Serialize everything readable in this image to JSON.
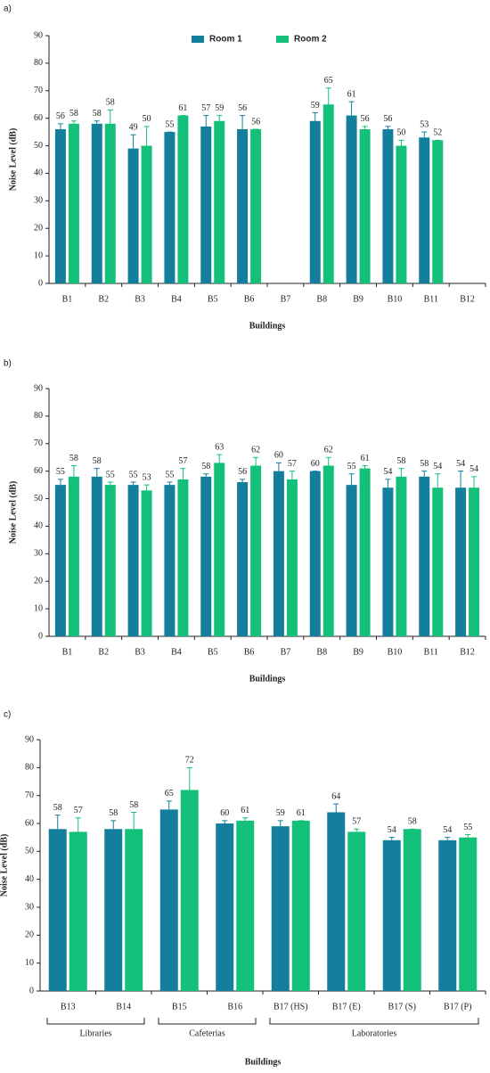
{
  "chart_data": [
    {
      "type": "bar",
      "panel_label": "a)",
      "y_label": "Noise Level (dB)",
      "x_label": "Buildings",
      "categories": [
        "B1",
        "B2",
        "B3",
        "B4",
        "B5",
        "B6",
        "B7",
        "B8",
        "B9",
        "B10",
        "B11",
        "B12"
      ],
      "series": [
        {
          "name": "Room 1",
          "color": "#137f9c",
          "values": [
            56,
            58,
            49,
            55,
            57,
            56,
            null,
            59,
            61,
            56,
            53,
            null
          ],
          "errors": [
            2,
            1,
            5,
            0,
            4,
            5,
            null,
            3,
            5,
            1,
            2,
            null
          ]
        },
        {
          "name": "Room 2",
          "color": "#12c07a",
          "values": [
            58,
            58,
            50,
            61,
            59,
            56,
            null,
            65,
            56,
            50,
            52,
            null
          ],
          "errors": [
            1,
            5,
            7,
            0,
            2,
            0,
            null,
            6,
            1,
            2,
            0,
            null
          ]
        }
      ],
      "ylim": [
        0,
        90
      ],
      "yticks": [
        0,
        10,
        20,
        30,
        40,
        50,
        60,
        70,
        80,
        90
      ],
      "legend": "top"
    },
    {
      "type": "bar",
      "panel_label": "b)",
      "y_label": "Noise Level (dB)",
      "x_label": "Buildings",
      "categories": [
        "B1",
        "B2",
        "B3",
        "B4",
        "B5",
        "B6",
        "B7",
        "B8",
        "B9",
        "B10",
        "B11",
        "B12"
      ],
      "series": [
        {
          "name": "Room 1",
          "color": "#137f9c",
          "values": [
            55,
            58,
            55,
            55,
            58,
            56,
            60,
            60,
            55,
            54,
            58,
            54
          ],
          "errors": [
            2,
            3,
            1,
            1,
            1,
            1,
            3,
            0,
            4,
            3,
            2,
            6
          ]
        },
        {
          "name": "Room 2",
          "color": "#12c07a",
          "values": [
            58,
            55,
            53,
            57,
            63,
            62,
            57,
            62,
            61,
            58,
            54,
            54
          ],
          "errors": [
            4,
            1,
            2,
            4,
            3,
            3,
            3,
            3,
            1,
            3,
            5,
            4
          ]
        }
      ],
      "ylim": [
        0,
        90
      ],
      "yticks": [
        0,
        10,
        20,
        30,
        40,
        50,
        60,
        70,
        80,
        90
      ]
    },
    {
      "type": "bar",
      "panel_label": "c)",
      "y_label": "Noise Level (dB)",
      "x_label": "Buildings",
      "categories": [
        "B13",
        "B14",
        "B15",
        "B16",
        "B17 (HS)",
        "B17 (E)",
        "B17 (S)",
        "B17 (P)"
      ],
      "groups": [
        {
          "label": "Libraries",
          "categories": [
            "B13",
            "B14"
          ]
        },
        {
          "label": "Cafeterias",
          "categories": [
            "B15",
            "B16"
          ]
        },
        {
          "label": "Laboratories",
          "categories": [
            "B17 (HS)",
            "B17 (E)",
            "B17 (S)",
            "B17 (P)"
          ]
        }
      ],
      "series": [
        {
          "name": "Room 1",
          "color": "#137f9c",
          "values": [
            58,
            58,
            65,
            60,
            59,
            64,
            54,
            54
          ],
          "errors": [
            5,
            3,
            3,
            1,
            2,
            3,
            1,
            1
          ]
        },
        {
          "name": "Room 2",
          "color": "#12c07a",
          "values": [
            57,
            58,
            72,
            61,
            61,
            57,
            58,
            55
          ],
          "errors": [
            5,
            6,
            8,
            1,
            0,
            1,
            0,
            1
          ]
        }
      ],
      "ylim": [
        0,
        90
      ],
      "yticks": [
        0,
        10,
        20,
        30,
        40,
        50,
        60,
        70,
        80,
        90
      ]
    }
  ]
}
